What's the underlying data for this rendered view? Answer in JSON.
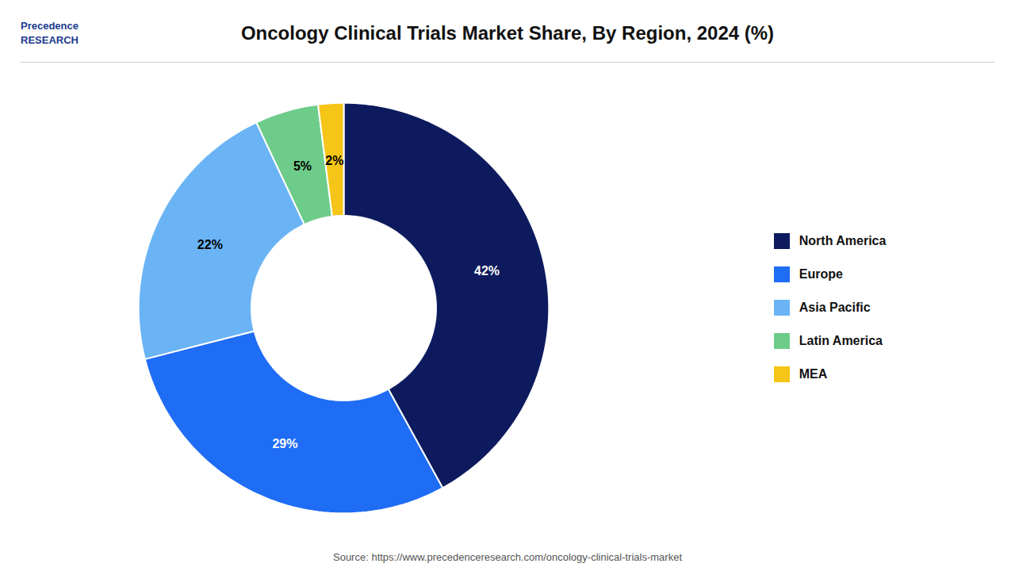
{
  "chart_data": {
    "type": "donut",
    "title": "Oncology Clinical Trials Market Share, By Region, 2024 (%)",
    "categories": [
      "North America",
      "Europe",
      "Asia Pacific",
      "Latin America",
      "MEA"
    ],
    "values": [
      42,
      29,
      22,
      5,
      2
    ],
    "value_labels": [
      "42%",
      "29%",
      "22%",
      "5%",
      "2%"
    ],
    "colors": [
      "#0d1b5e",
      "#1f6cf5",
      "#6ab4f5",
      "#6dcc8a",
      "#f5c518"
    ],
    "data_labels": true,
    "legend": "right",
    "annotations": [
      "Precedence\nRESEARCH",
      "Source: https://www.precedenceresearch.com/oncology-clinical-trials-market"
    ]
  }
}
